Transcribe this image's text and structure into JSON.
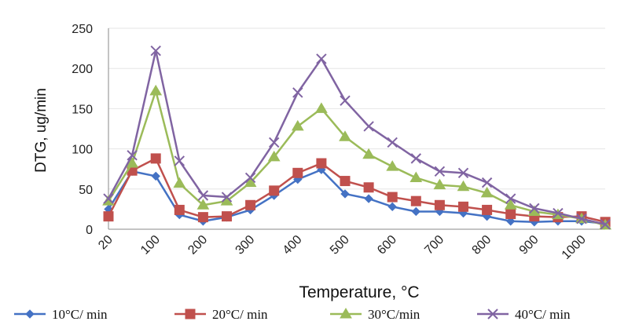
{
  "chart_data": {
    "type": "line",
    "xlabel": "Temperature, °C",
    "ylabel": "DTG, ug/min",
    "ylim": [
      0,
      250
    ],
    "yticks": [
      "0",
      "50",
      "100",
      "150",
      "200",
      "250"
    ],
    "xticks": [
      "20",
      "100",
      "200",
      "300",
      "400",
      "500",
      "600",
      "700",
      "800",
      "900",
      "1000"
    ],
    "x": [
      20,
      50,
      100,
      150,
      200,
      250,
      300,
      350,
      400,
      450,
      500,
      550,
      600,
      650,
      700,
      750,
      800,
      850,
      900,
      950,
      1000,
      1050
    ],
    "series": [
      {
        "name": "10°C/ min",
        "legend_label": "10°C/ min",
        "color": "#4472C4",
        "marker": "diamond",
        "values": [
          25,
          72,
          66,
          18,
          10,
          15,
          24,
          42,
          62,
          74,
          44,
          38,
          28,
          22,
          22,
          20,
          16,
          10,
          9,
          10,
          10,
          7
        ]
      },
      {
        "name": "20°C/ min",
        "legend_label": "20°C/ min",
        "color": "#C0504D",
        "marker": "square",
        "values": [
          16,
          73,
          88,
          24,
          15,
          16,
          30,
          48,
          70,
          82,
          60,
          52,
          40,
          35,
          30,
          28,
          24,
          19,
          16,
          15,
          16,
          9
        ]
      },
      {
        "name": "30°C/min",
        "legend_label": "30°C/min",
        "color": "#9BBB59",
        "marker": "triangle",
        "values": [
          35,
          82,
          172,
          57,
          30,
          35,
          58,
          90,
          128,
          150,
          115,
          93,
          78,
          64,
          55,
          53,
          45,
          30,
          22,
          18,
          13,
          5
        ]
      },
      {
        "name": "40°C/ min",
        "legend_label": "40°C/ min",
        "color": "#8064A2",
        "marker": "x",
        "values": [
          38,
          92,
          222,
          85,
          42,
          40,
          64,
          108,
          170,
          212,
          160,
          128,
          108,
          88,
          72,
          70,
          58,
          38,
          26,
          20,
          13,
          6
        ]
      }
    ]
  }
}
